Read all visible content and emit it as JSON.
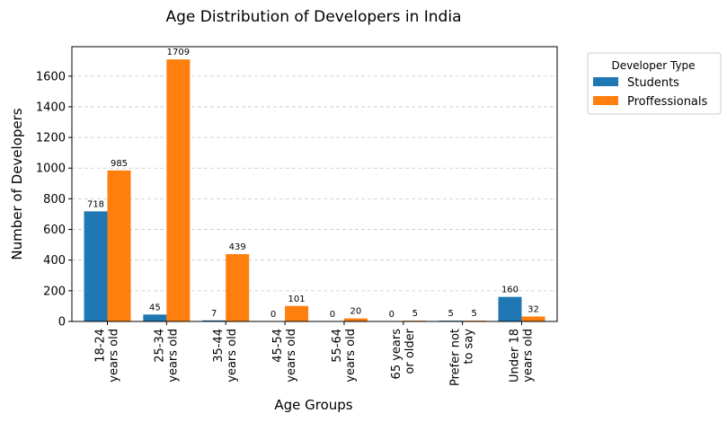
{
  "chart_data": {
    "type": "bar",
    "title": "Age Distribution of Developers in India",
    "xlabel": "Age Groups",
    "ylabel": "Number of Developers",
    "categories": [
      [
        "18-24",
        "years old"
      ],
      [
        "25-34",
        "years old"
      ],
      [
        "35-44",
        "years old"
      ],
      [
        "45-54",
        "years old"
      ],
      [
        "55-64",
        "years old"
      ],
      [
        "65 years",
        "or older"
      ],
      [
        "Prefer not",
        "to say"
      ],
      [
        "Under 18",
        "years old"
      ]
    ],
    "series": [
      {
        "name": "Students",
        "color": "#1f77b4",
        "values": [
          718,
          45,
          7,
          0,
          0,
          0,
          5,
          160
        ]
      },
      {
        "name": "Proffessionals",
        "color": "#ff7f0e",
        "values": [
          985,
          1709,
          439,
          101,
          20,
          5,
          5,
          32
        ]
      }
    ],
    "ylim": [
      0,
      1792
    ],
    "yticks": [
      0,
      200,
      400,
      600,
      800,
      1000,
      1200,
      1400,
      1600
    ],
    "grid": "y-dashed",
    "legend": {
      "title": "Developer Type",
      "placement": "outside-top-right"
    }
  }
}
